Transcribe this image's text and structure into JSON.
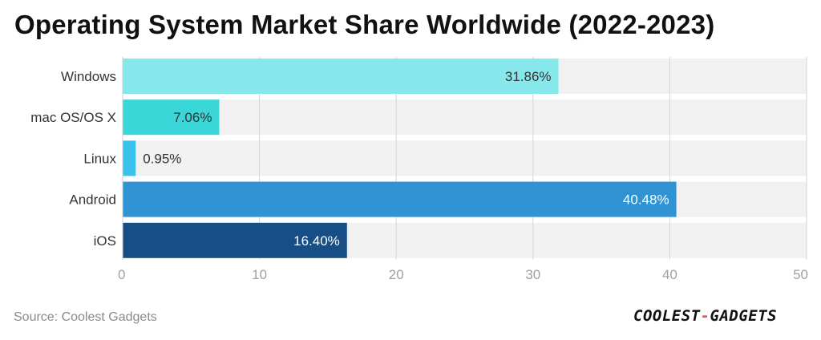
{
  "title": "Operating System Market Share Worldwide (2022-2023)",
  "source": "Source: Coolest Gadgets",
  "logo": {
    "part1": "COOLEST",
    "dash": "-",
    "part2": "GADGETS"
  },
  "chart_data": {
    "type": "bar",
    "orientation": "horizontal",
    "title": "Operating System Market Share Worldwide (2022-2023)",
    "categories": [
      "Windows",
      "mac OS/OS X",
      "Linux",
      "Android",
      "iOS"
    ],
    "values": [
      31.86,
      7.06,
      0.95,
      40.48,
      16.4
    ],
    "labels": [
      "31.86%",
      "7.06%",
      "0.95%",
      "40.48%",
      "16.40%"
    ],
    "colors": [
      "#87e8ec",
      "#3ad6d8",
      "#37c2ea",
      "#2f93d4",
      "#164e85"
    ],
    "label_colors": [
      "#333333",
      "#333333",
      "#333333",
      "#ffffff",
      "#ffffff"
    ],
    "xlim": [
      0,
      50
    ],
    "xticks": [
      0,
      10,
      20,
      30,
      40,
      50
    ],
    "xlabel": "",
    "ylabel": "",
    "grid": true
  }
}
